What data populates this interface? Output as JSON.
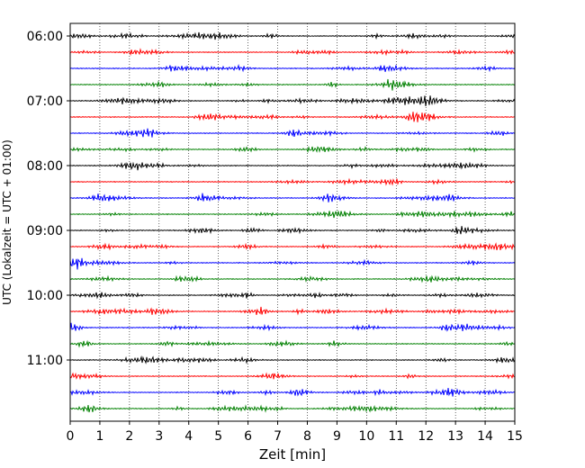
{
  "chart_data": {
    "type": "line",
    "title": "",
    "xlabel": "Zeit  [min]",
    "ylabel": "UTC (Lokalzeit = UTC + 01:00)",
    "xlim": [
      0,
      15
    ],
    "x_ticks": [
      "0",
      "1",
      "2",
      "3",
      "4",
      "5",
      "6",
      "7",
      "8",
      "9",
      "10",
      "11",
      "12",
      "13",
      "14",
      "15"
    ],
    "y_ticks": [
      "06:00",
      "07:00",
      "08:00",
      "09:00",
      "10:00",
      "11:00"
    ],
    "grid": "vertical dotted",
    "trace_interval_minutes": 15,
    "start_time": "06:00",
    "trace_count": 24,
    "trace_colors": [
      "#000000",
      "#ff0000",
      "#0000ff",
      "#008000"
    ],
    "traces": [
      {
        "time": "06:00",
        "color": "#000000"
      },
      {
        "time": "06:15",
        "color": "#ff0000"
      },
      {
        "time": "06:30",
        "color": "#0000ff"
      },
      {
        "time": "06:45",
        "color": "#008000"
      },
      {
        "time": "07:00",
        "color": "#000000"
      },
      {
        "time": "07:15",
        "color": "#ff0000"
      },
      {
        "time": "07:30",
        "color": "#0000ff"
      },
      {
        "time": "07:45",
        "color": "#008000"
      },
      {
        "time": "08:00",
        "color": "#000000"
      },
      {
        "time": "08:15",
        "color": "#ff0000"
      },
      {
        "time": "08:30",
        "color": "#0000ff"
      },
      {
        "time": "08:45",
        "color": "#008000"
      },
      {
        "time": "09:00",
        "color": "#000000"
      },
      {
        "time": "09:15",
        "color": "#ff0000"
      },
      {
        "time": "09:30",
        "color": "#0000ff"
      },
      {
        "time": "09:45",
        "color": "#008000"
      },
      {
        "time": "10:00",
        "color": "#000000"
      },
      {
        "time": "10:15",
        "color": "#ff0000"
      },
      {
        "time": "10:30",
        "color": "#0000ff"
      },
      {
        "time": "10:45",
        "color": "#008000"
      },
      {
        "time": "11:00",
        "color": "#000000"
      },
      {
        "time": "11:15",
        "color": "#ff0000"
      },
      {
        "time": "11:30",
        "color": "#0000ff"
      },
      {
        "time": "11:45",
        "color": "#008000"
      }
    ]
  }
}
